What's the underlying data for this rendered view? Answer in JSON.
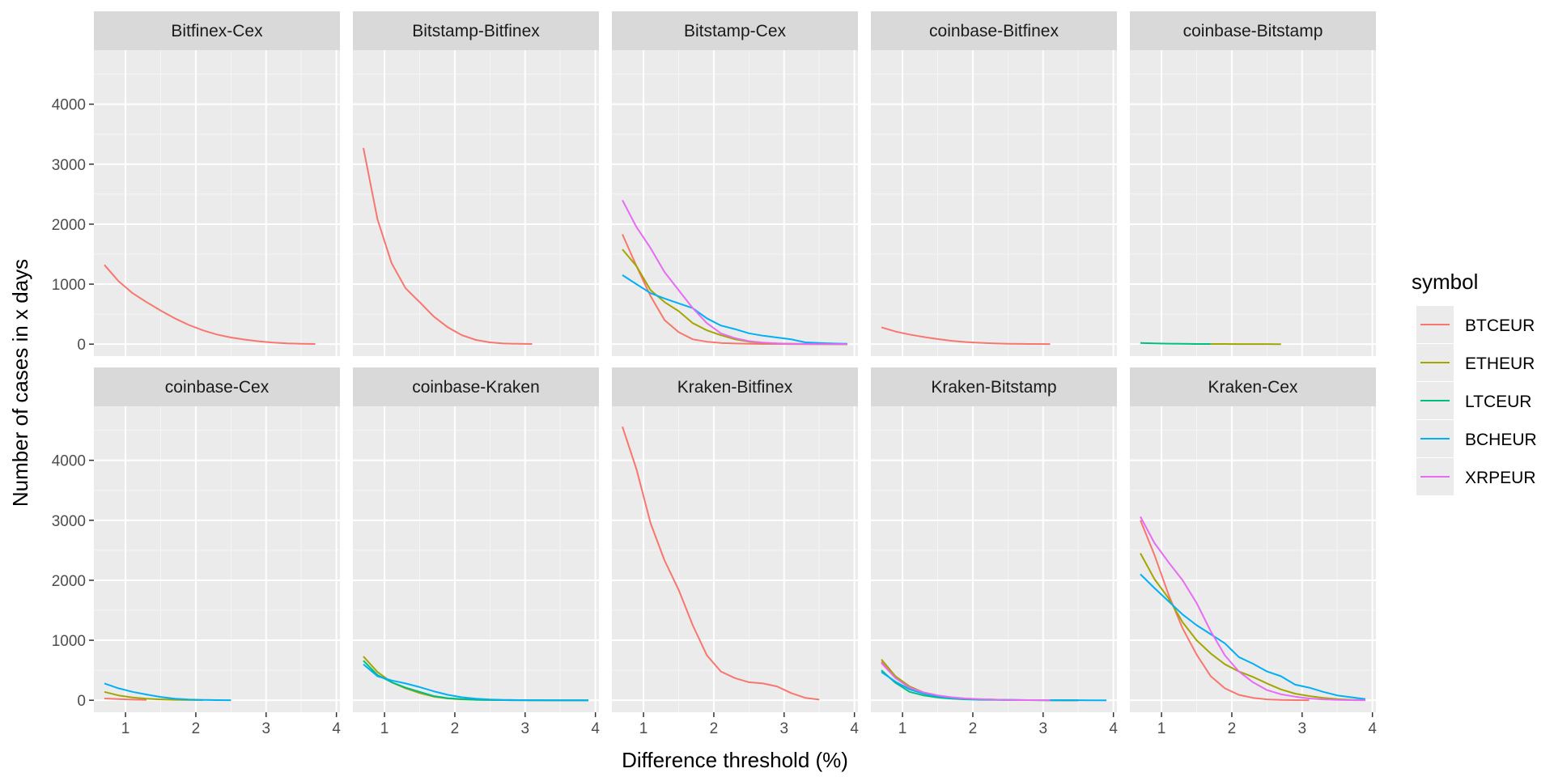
{
  "chart_data": {
    "type": "line",
    "facet_grid": "2x5",
    "xlabel": "Difference threshold (%)",
    "ylabel": "Number of cases in x days",
    "xlim": [
      0.55,
      4.05
    ],
    "ylim": [
      -200,
      4900
    ],
    "x_ticks": [
      1,
      2,
      3,
      4
    ],
    "y_ticks": [
      0,
      1000,
      2000,
      3000,
      4000
    ],
    "grid": true,
    "legend": {
      "title": "symbol",
      "position": "right",
      "entries": [
        {
          "name": "BTCEUR",
          "color": "#F8766D"
        },
        {
          "name": "ETHEUR",
          "color": "#A3A500"
        },
        {
          "name": "LTCEUR",
          "color": "#00BF7D"
        },
        {
          "name": "BCHEUR",
          "color": "#00B0F6"
        },
        {
          "name": "XRPEUR",
          "color": "#E76BF3"
        }
      ]
    },
    "facets": [
      {
        "title": "Bitfinex-Cex",
        "series": [
          {
            "name": "BTCEUR",
            "x": [
              0.7,
              0.9,
              1.1,
              1.3,
              1.5,
              1.7,
              1.9,
              2.1,
              2.3,
              2.5,
              2.7,
              2.9,
              3.1,
              3.3,
              3.5,
              3.7
            ],
            "y": [
              1320,
              1050,
              850,
              700,
              560,
              430,
              320,
              230,
              160,
              110,
              75,
              45,
              25,
              12,
              5,
              2
            ]
          }
        ]
      },
      {
        "title": "Bitstamp-Bitfinex",
        "series": [
          {
            "name": "BTCEUR",
            "x": [
              0.7,
              0.9,
              1.1,
              1.3,
              1.5,
              1.7,
              1.9,
              2.1,
              2.3,
              2.5,
              2.7,
              2.9,
              3.1
            ],
            "y": [
              3270,
              2080,
              1350,
              930,
              700,
              460,
              280,
              150,
              70,
              30,
              10,
              5,
              2
            ]
          }
        ]
      },
      {
        "title": "Bitstamp-Cex",
        "series": [
          {
            "name": "BTCEUR",
            "x": [
              0.7,
              0.9,
              1.1,
              1.3,
              1.5,
              1.7,
              1.9,
              2.1,
              2.3,
              2.5,
              2.7,
              2.9,
              3.1,
              3.3,
              3.5,
              3.7,
              3.9
            ],
            "y": [
              1830,
              1300,
              800,
              400,
              200,
              80,
              40,
              20,
              10,
              5,
              3,
              2,
              1,
              0,
              0,
              0,
              0
            ]
          },
          {
            "name": "ETHEUR",
            "x": [
              0.7,
              0.9,
              1.1,
              1.3,
              1.5,
              1.7,
              1.9,
              2.1,
              2.3,
              2.5,
              2.7,
              2.9,
              3.1,
              3.3,
              3.5,
              3.7,
              3.9
            ],
            "y": [
              1580,
              1300,
              900,
              700,
              550,
              350,
              230,
              150,
              80,
              40,
              20,
              10,
              5,
              2,
              1,
              0,
              0
            ]
          },
          {
            "name": "BCHEUR",
            "x": [
              0.7,
              0.9,
              1.1,
              1.3,
              1.5,
              1.7,
              1.9,
              2.1,
              2.3,
              2.5,
              2.7,
              2.9,
              3.1,
              3.3,
              3.5,
              3.7,
              3.9
            ],
            "y": [
              1150,
              1000,
              850,
              760,
              680,
              600,
              430,
              310,
              250,
              180,
              140,
              110,
              80,
              30,
              20,
              10,
              5
            ]
          },
          {
            "name": "XRPEUR",
            "x": [
              0.7,
              0.9,
              1.1,
              1.3,
              1.5,
              1.7,
              1.9,
              2.1,
              2.3,
              2.5,
              2.7,
              2.9,
              3.1,
              3.3,
              3.5,
              3.7,
              3.9
            ],
            "y": [
              2400,
              1950,
              1600,
              1200,
              900,
              600,
              350,
              180,
              100,
              50,
              25,
              12,
              6,
              3,
              1,
              0,
              0
            ]
          }
        ]
      },
      {
        "title": "coinbase-Bitfinex",
        "series": [
          {
            "name": "BTCEUR",
            "x": [
              0.7,
              0.9,
              1.1,
              1.3,
              1.5,
              1.7,
              1.9,
              2.1,
              2.3,
              2.5,
              2.7,
              2.9,
              3.1
            ],
            "y": [
              280,
              210,
              160,
              120,
              85,
              55,
              35,
              22,
              13,
              7,
              4,
              2,
              1
            ]
          }
        ]
      },
      {
        "title": "coinbase-Bitstamp",
        "series": [
          {
            "name": "LTCEUR",
            "x": [
              0.7,
              0.9,
              1.1,
              1.3,
              1.5,
              1.7
            ],
            "y": [
              20,
              12,
              8,
              5,
              3,
              2
            ]
          },
          {
            "name": "ETHEUR",
            "x": [
              1.7,
              1.9,
              2.1,
              2.3,
              2.5,
              2.7
            ],
            "y": [
              2,
              2,
              1,
              1,
              1,
              0
            ]
          }
        ]
      },
      {
        "title": "coinbase-Cex",
        "series": [
          {
            "name": "BTCEUR",
            "x": [
              0.7,
              0.9,
              1.1,
              1.3
            ],
            "y": [
              30,
              20,
              10,
              5
            ]
          },
          {
            "name": "ETHEUR",
            "x": [
              0.7,
              0.9,
              1.1,
              1.3,
              1.5,
              1.7,
              1.9,
              2.1
            ],
            "y": [
              140,
              80,
              45,
              25,
              15,
              8,
              4,
              2
            ]
          },
          {
            "name": "BCHEUR",
            "x": [
              0.7,
              0.9,
              1.1,
              1.3,
              1.5,
              1.7,
              1.9,
              2.1,
              2.3,
              2.5
            ],
            "y": [
              280,
              200,
              140,
              95,
              55,
              25,
              12,
              6,
              3,
              1
            ]
          }
        ]
      },
      {
        "title": "coinbase-Kraken",
        "series": [
          {
            "name": "ETHEUR",
            "x": [
              0.7,
              0.9,
              1.1,
              1.3,
              1.5,
              1.7,
              1.9,
              2.1,
              2.3,
              2.5,
              2.7,
              2.9,
              3.1,
              3.3,
              3.5,
              3.7,
              3.9
            ],
            "y": [
              730,
              470,
              300,
              200,
              120,
              60,
              30,
              15,
              8,
              4,
              2,
              1,
              0,
              0,
              0,
              0,
              0
            ]
          },
          {
            "name": "LTCEUR",
            "x": [
              0.7,
              0.9,
              1.1,
              1.3,
              1.5,
              1.7,
              1.9,
              2.1,
              2.3,
              2.5,
              2.7,
              2.9,
              3.1,
              3.3,
              3.5,
              3.7,
              3.9
            ],
            "y": [
              660,
              420,
              300,
              210,
              140,
              70,
              35,
              18,
              8,
              4,
              2,
              1,
              0,
              0,
              0,
              0,
              0
            ]
          },
          {
            "name": "BCHEUR",
            "x": [
              0.7,
              0.9,
              1.1,
              1.3,
              1.5,
              1.7,
              1.9,
              2.1,
              2.3,
              2.5,
              2.7,
              2.9,
              3.1,
              3.3,
              3.5,
              3.7,
              3.9
            ],
            "y": [
              600,
              400,
              330,
              280,
              220,
              150,
              90,
              50,
              25,
              12,
              6,
              3,
              2,
              1,
              0,
              0,
              0
            ]
          }
        ]
      },
      {
        "title": "Kraken-Bitfinex",
        "series": [
          {
            "name": "BTCEUR",
            "x": [
              0.7,
              0.9,
              1.1,
              1.3,
              1.5,
              1.7,
              1.9,
              2.1,
              2.3,
              2.5,
              2.7,
              2.9,
              3.1,
              3.3,
              3.5
            ],
            "y": [
              4560,
              3850,
              2950,
              2330,
              1840,
              1250,
              750,
              480,
              370,
              300,
              280,
              230,
              120,
              40,
              10
            ]
          }
        ]
      },
      {
        "title": "Kraken-Bitstamp",
        "series": [
          {
            "name": "BTCEUR",
            "x": [
              0.7,
              0.9,
              1.1,
              1.3,
              1.5,
              1.7,
              1.9,
              2.1,
              2.3,
              2.5,
              2.7,
              2.9,
              3.1,
              3.3,
              3.5
            ],
            "y": [
              640,
              380,
              200,
              120,
              70,
              40,
              25,
              15,
              10,
              5,
              3,
              2,
              1,
              0,
              0
            ]
          },
          {
            "name": "ETHEUR",
            "x": [
              0.7,
              0.9,
              1.1,
              1.3,
              1.5,
              1.7,
              1.9,
              2.1,
              2.3,
              2.5,
              2.7,
              2.9,
              3.1,
              3.3,
              3.5
            ],
            "y": [
              680,
              400,
              230,
              130,
              80,
              45,
              28,
              16,
              10,
              5,
              3,
              2,
              1,
              0,
              0
            ]
          },
          {
            "name": "LTCEUR",
            "x": [
              0.7,
              0.9,
              1.1,
              1.3,
              1.5,
              1.7,
              1.9,
              2.1,
              2.3,
              2.5,
              2.7,
              2.9,
              3.1,
              3.3,
              3.5
            ],
            "y": [
              500,
              290,
              140,
              80,
              45,
              25,
              14,
              8,
              5,
              3,
              2,
              1,
              0,
              0,
              0
            ]
          },
          {
            "name": "BCHEUR",
            "x": [
              0.7,
              0.9,
              1.1,
              1.3,
              1.5,
              1.7,
              1.9,
              2.1,
              2.3,
              2.5,
              2.7,
              2.9,
              3.1,
              3.3,
              3.5,
              3.7,
              3.9
            ],
            "y": [
              470,
              310,
              180,
              110,
              65,
              38,
              22,
              14,
              9,
              6,
              4,
              3,
              2,
              1,
              1,
              0,
              0
            ]
          },
          {
            "name": "XRPEUR",
            "x": [
              0.7,
              0.9,
              1.1,
              1.3,
              1.5,
              1.7,
              1.9,
              2.1,
              2.3,
              2.5,
              2.7,
              2.9,
              3.1
            ],
            "y": [
              620,
              370,
              210,
              130,
              80,
              50,
              30,
              18,
              10,
              6,
              3,
              2,
              1
            ]
          }
        ]
      },
      {
        "title": "Kraken-Cex",
        "series": [
          {
            "name": "BTCEUR",
            "x": [
              0.7,
              0.9,
              1.1,
              1.3,
              1.5,
              1.7,
              1.9,
              2.1,
              2.3,
              2.5,
              2.7,
              2.9,
              3.1
            ],
            "y": [
              3000,
              2420,
              1760,
              1200,
              760,
              400,
              200,
              90,
              40,
              15,
              5,
              2,
              1
            ]
          },
          {
            "name": "ETHEUR",
            "x": [
              0.7,
              0.9,
              1.1,
              1.3,
              1.5,
              1.7,
              1.9,
              2.1,
              2.3,
              2.5,
              2.7,
              2.9,
              3.1,
              3.3,
              3.5,
              3.7,
              3.9
            ],
            "y": [
              2450,
              2020,
              1700,
              1300,
              1000,
              780,
              600,
              480,
              390,
              280,
              180,
              110,
              70,
              40,
              20,
              8,
              3
            ]
          },
          {
            "name": "BCHEUR",
            "x": [
              0.7,
              0.9,
              1.1,
              1.3,
              1.5,
              1.7,
              1.9,
              2.1,
              2.3,
              2.5,
              2.7,
              2.9,
              3.1,
              3.3,
              3.5,
              3.7,
              3.9
            ],
            "y": [
              2100,
              1870,
              1650,
              1430,
              1250,
              1100,
              950,
              720,
              610,
              480,
              400,
              260,
              210,
              140,
              80,
              50,
              20
            ]
          },
          {
            "name": "XRPEUR",
            "x": [
              0.7,
              0.9,
              1.1,
              1.3,
              1.5,
              1.7,
              1.9,
              2.1,
              2.3,
              2.5,
              2.7,
              2.9,
              3.1,
              3.3,
              3.5,
              3.7,
              3.9
            ],
            "y": [
              3060,
              2620,
              2300,
              2000,
              1620,
              1150,
              750,
              480,
              300,
              170,
              100,
              60,
              30,
              15,
              6,
              2,
              1
            ]
          }
        ]
      }
    ]
  }
}
